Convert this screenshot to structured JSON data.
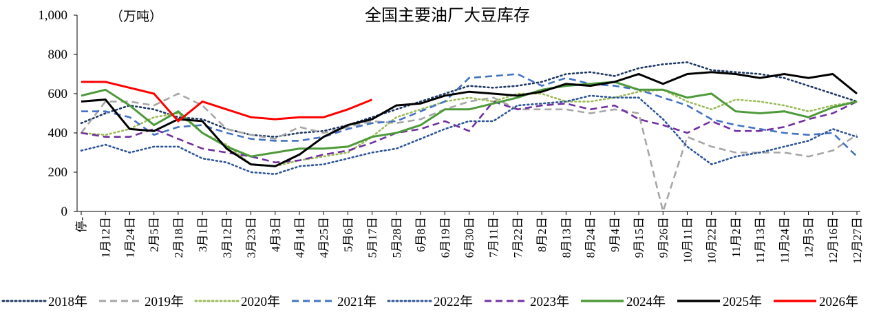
{
  "chart_data": {
    "type": "line",
    "title": "全国主要油厂大豆库存",
    "y_label": "（万吨）",
    "categories": [
      "停-",
      "1月12日",
      "1月24日",
      "2月5日",
      "2月18日",
      "3月1日",
      "3月12日",
      "3月23日",
      "4月3日",
      "4月14日",
      "4月25日",
      "5月6日",
      "5月17日",
      "5月28日",
      "6月8日",
      "6月19日",
      "6月30日",
      "7月11日",
      "7月22日",
      "8月2日",
      "8月13日",
      "8月24日",
      "9月4日",
      "9月15日",
      "9月26日",
      "10月11日",
      "10月22日",
      "11月2日",
      "11月13日",
      "11月24日",
      "12月5日",
      "12月16日",
      "12月27日"
    ],
    "ylim": [
      0,
      1000
    ],
    "yticks": [
      0,
      200,
      400,
      600,
      800,
      {
        "value": 1000,
        "label": "1,000"
      }
    ],
    "series": [
      {
        "name": "2018年",
        "color": "#1f3864",
        "style": "dotted",
        "values": [
          450,
          500,
          540,
          520,
          480,
          470,
          420,
          390,
          380,
          400,
          410,
          440,
          480,
          520,
          560,
          600,
          640,
          630,
          640,
          660,
          700,
          710,
          690,
          730,
          750,
          760,
          720,
          710,
          700,
          680,
          640,
          600,
          560
        ]
      },
      {
        "name": "2019年",
        "color": "#a6a6a6",
        "style": "dashed",
        "values": [
          400,
          560,
          560,
          540,
          600,
          540,
          420,
          390,
          370,
          430,
          400,
          430,
          460,
          450,
          470,
          520,
          560,
          580,
          520,
          520,
          520,
          500,
          520,
          500,
          0,
          380,
          330,
          300,
          300,
          300,
          280,
          310,
          390
        ]
      },
      {
        "name": "2020年",
        "color": "#9bbb59",
        "style": "dotted",
        "values": [
          400,
          390,
          420,
          480,
          500,
          400,
          340,
          240,
          230,
          260,
          280,
          300,
          380,
          480,
          520,
          560,
          580,
          560,
          600,
          600,
          560,
          560,
          580,
          610,
          620,
          560,
          520,
          570,
          560,
          540,
          510,
          540,
          560
        ]
      },
      {
        "name": "2021年",
        "color": "#4472c4",
        "style": "dashed",
        "values": [
          510,
          510,
          480,
          390,
          430,
          440,
          400,
          370,
          360,
          360,
          380,
          420,
          450,
          460,
          510,
          560,
          680,
          690,
          700,
          640,
          680,
          650,
          640,
          620,
          580,
          540,
          470,
          440,
          420,
          400,
          390,
          400,
          280
        ]
      },
      {
        "name": "2022年",
        "color": "#2e5597",
        "style": "dotted",
        "values": [
          310,
          340,
          300,
          330,
          330,
          270,
          250,
          200,
          190,
          230,
          240,
          270,
          300,
          320,
          370,
          420,
          460,
          460,
          540,
          550,
          560,
          590,
          580,
          580,
          470,
          330,
          240,
          280,
          300,
          330,
          360,
          420,
          380
        ]
      },
      {
        "name": "2023年",
        "color": "#7030a0",
        "style": "dashed",
        "values": [
          400,
          380,
          380,
          420,
          370,
          320,
          300,
          280,
          250,
          260,
          290,
          310,
          350,
          400,
          420,
          460,
          410,
          560,
          520,
          540,
          550,
          520,
          540,
          470,
          440,
          400,
          460,
          410,
          410,
          430,
          470,
          500,
          560
        ]
      },
      {
        "name": "2024年",
        "color": "#4e9a3a",
        "style": "solid",
        "values": [
          590,
          620,
          540,
          440,
          510,
          400,
          330,
          280,
          300,
          320,
          320,
          330,
          380,
          400,
          440,
          520,
          520,
          550,
          580,
          620,
          640,
          650,
          660,
          620,
          620,
          580,
          600,
          510,
          500,
          510,
          480,
          530,
          560
        ]
      },
      {
        "name": "2025年",
        "color": "#000000",
        "style": "solid",
        "values": [
          560,
          570,
          420,
          410,
          470,
          460,
          320,
          240,
          230,
          290,
          380,
          440,
          470,
          540,
          550,
          590,
          610,
          600,
          590,
          610,
          650,
          640,
          660,
          700,
          650,
          700,
          710,
          700,
          680,
          700,
          680,
          700,
          600
        ]
      },
      {
        "name": "2026年",
        "color": "#ff0000",
        "style": "solid",
        "values": [
          660,
          660,
          630,
          600,
          460,
          560,
          520,
          480,
          470,
          480,
          480,
          520,
          570,
          null,
          null,
          null,
          null,
          null,
          null,
          null,
          null,
          null,
          null,
          null,
          null,
          null,
          null,
          null,
          null,
          null,
          null,
          null,
          null
        ]
      }
    ]
  }
}
